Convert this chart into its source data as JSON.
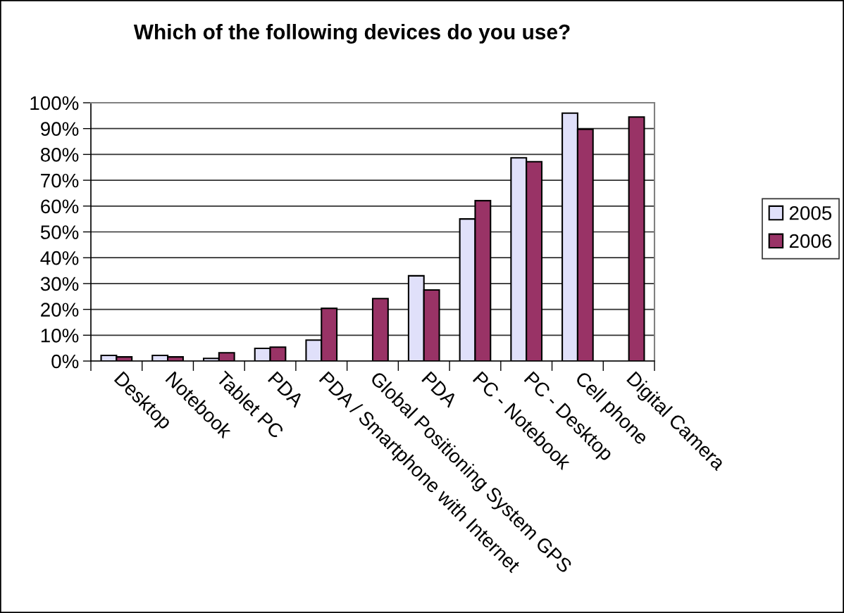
{
  "chart_data": {
    "type": "bar",
    "title": "Which of the following devices do you use?",
    "categories": [
      "Desktop",
      "Notebook",
      "Tablet PC",
      "PDA",
      "PDA / Smartphone with Internet",
      "Global Positioning System GPS",
      "PDA",
      "PC - Notebook",
      "PC - Desktop",
      "Cell phone",
      "Digital Camera"
    ],
    "series": [
      {
        "name": "2005",
        "color": "#e0e0fa",
        "values": [
          2.2,
          2.2,
          1.0,
          4.9,
          8.1,
          null,
          33.0,
          55.0,
          78.7,
          96.0,
          null
        ]
      },
      {
        "name": "2006",
        "color": "#993366",
        "values": [
          1.6,
          1.6,
          3.2,
          5.4,
          20.4,
          24.2,
          27.5,
          62.1,
          77.2,
          89.7,
          94.5
        ]
      }
    ],
    "ylim": [
      0,
      100
    ],
    "yticks": [
      {
        "value": 0,
        "label": "0%"
      },
      {
        "value": 10,
        "label": "10%"
      },
      {
        "value": 20,
        "label": "20%"
      },
      {
        "value": 30,
        "label": "30%"
      },
      {
        "value": 40,
        "label": "40%"
      },
      {
        "value": 50,
        "label": "50%"
      },
      {
        "value": 60,
        "label": "60%"
      },
      {
        "value": 70,
        "label": "70%"
      },
      {
        "value": 80,
        "label": "80%"
      },
      {
        "value": 90,
        "label": "90%"
      },
      {
        "value": 100,
        "label": "100%"
      }
    ],
    "grid": "y",
    "legend": "right"
  }
}
